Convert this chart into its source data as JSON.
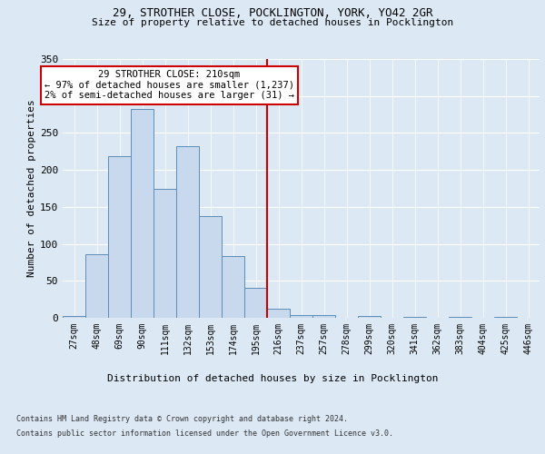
{
  "title1": "29, STROTHER CLOSE, POCKLINGTON, YORK, YO42 2GR",
  "title2": "Size of property relative to detached houses in Pocklington",
  "xlabel": "Distribution of detached houses by size in Pocklington",
  "ylabel": "Number of detached properties",
  "categories": [
    "27sqm",
    "48sqm",
    "69sqm",
    "90sqm",
    "111sqm",
    "132sqm",
    "153sqm",
    "174sqm",
    "195sqm",
    "216sqm",
    "237sqm",
    "257sqm",
    "278sqm",
    "299sqm",
    "320sqm",
    "341sqm",
    "362sqm",
    "383sqm",
    "404sqm",
    "425sqm",
    "446sqm"
  ],
  "values": [
    2,
    86,
    219,
    283,
    175,
    232,
    138,
    84,
    40,
    12,
    4,
    4,
    0,
    3,
    0,
    1,
    0,
    1,
    0,
    1,
    0
  ],
  "bar_color": "#c9d9ed",
  "bar_edge_color": "#5b8db8",
  "vline_x": 8.5,
  "annotation_title": "29 STROTHER CLOSE: 210sqm",
  "annotation_line1": "← 97% of detached houses are smaller (1,237)",
  "annotation_line2": "2% of semi-detached houses are larger (31) →",
  "annotation_box_color": "#ffffff",
  "annotation_box_edge": "#cc0000",
  "vline_color": "#cc0000",
  "footer1": "Contains HM Land Registry data © Crown copyright and database right 2024.",
  "footer2": "Contains public sector information licensed under the Open Government Licence v3.0.",
  "bg_color": "#dce9f5",
  "ylim": [
    0,
    350
  ],
  "yticks": [
    0,
    50,
    100,
    150,
    200,
    250,
    300,
    350
  ]
}
